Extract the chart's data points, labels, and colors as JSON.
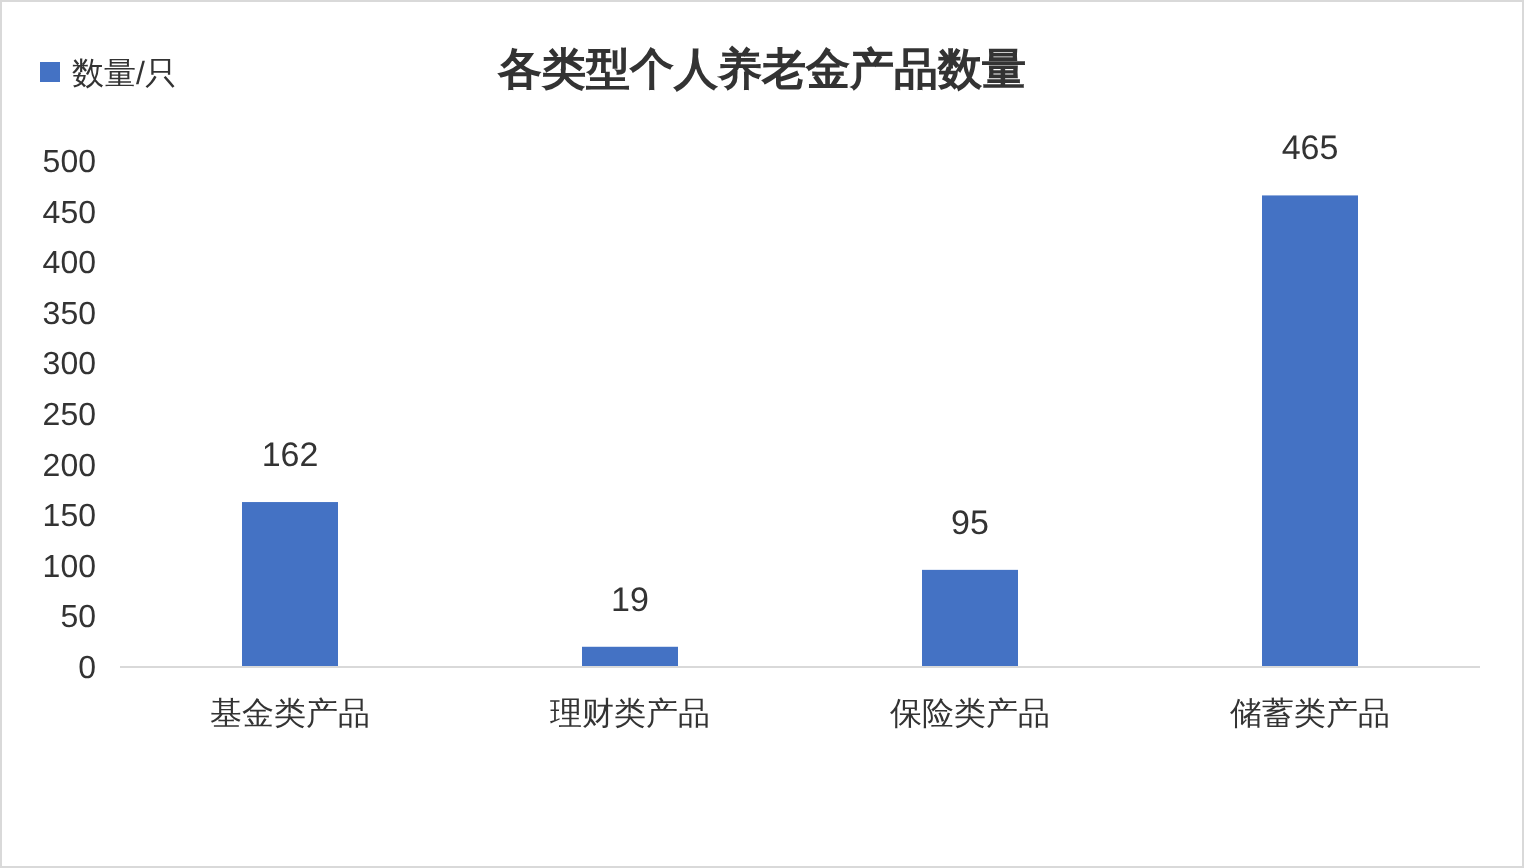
{
  "chart_data": {
    "type": "bar",
    "title": "各类型个人养老金产品数量",
    "categories": [
      "基金类产品",
      "理财类产品",
      "保险类产品",
      "储蓄类产品"
    ],
    "series": [
      {
        "name": "数量/只",
        "color": "#4472c4",
        "values": [
          162,
          19,
          95,
          465
        ]
      }
    ],
    "ylim": [
      0,
      500
    ],
    "yticks": [
      0,
      50,
      100,
      150,
      200,
      250,
      300,
      350,
      400,
      450,
      500
    ],
    "data_labels": true,
    "legend": "top left"
  }
}
